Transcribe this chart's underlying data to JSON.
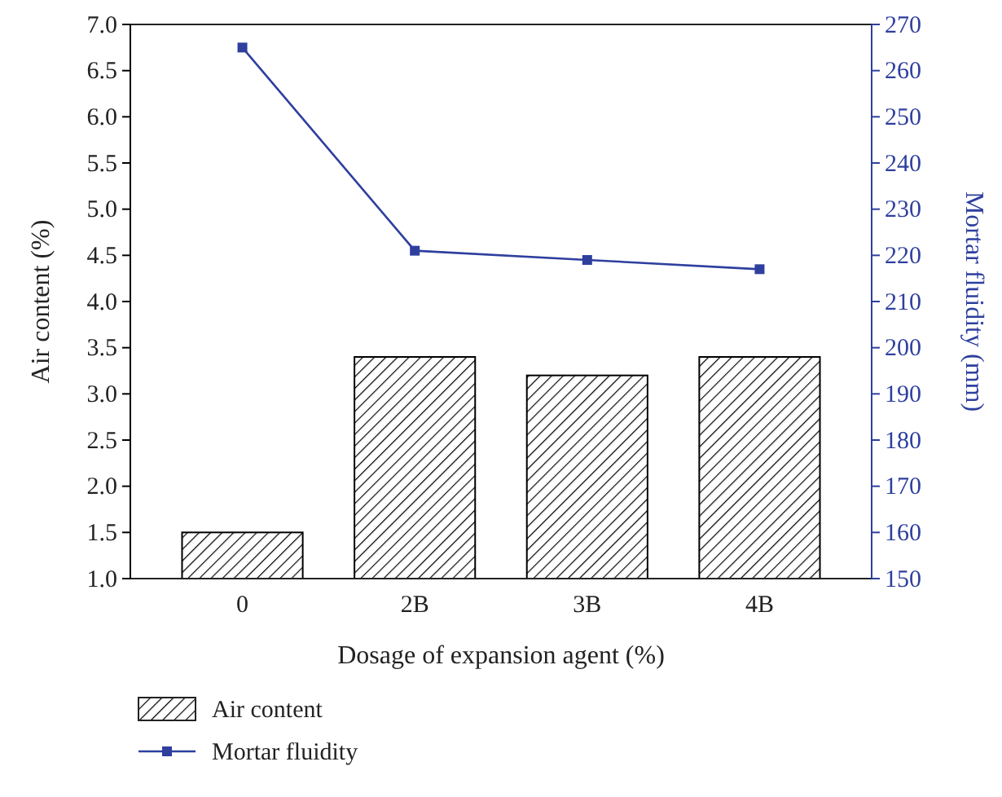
{
  "chart_data": {
    "type": "bar",
    "xlabel": "Dosage of expansion agent (%)",
    "ylabel": "Air content (%)",
    "y2label": "Mortar fluidity (mm)",
    "categories": [
      "0",
      "2B",
      "3B",
      "4B"
    ],
    "series": [
      {
        "name": "Air content",
        "color": "#000000",
        "values": [
          1.5,
          3.4,
          3.2,
          3.4
        ]
      },
      {
        "name": "Mortar fluidity",
        "type": "line",
        "axis": "y2",
        "color": "#2e3f9e",
        "marker": "square",
        "values": [
          265,
          221,
          219,
          217
        ]
      }
    ],
    "ylim": [
      1,
      7
    ],
    "yticks": [
      {
        "value": 1,
        "label": "1.0"
      },
      {
        "value": 1.5,
        "label": "1.5"
      },
      {
        "value": 2,
        "label": "2.0"
      },
      {
        "value": 2.5,
        "label": "2.5"
      },
      {
        "value": 3,
        "label": "3.0"
      },
      {
        "value": 3.5,
        "label": "3.5"
      },
      {
        "value": 4,
        "label": "4.0"
      },
      {
        "value": 4.5,
        "label": "4.5"
      },
      {
        "value": 5,
        "label": "5.0"
      },
      {
        "value": 5.5,
        "label": "5.5"
      },
      {
        "value": 6,
        "label": "6.0"
      },
      {
        "value": 6.5,
        "label": "6.5"
      },
      {
        "value": 7,
        "label": "7.0"
      }
    ],
    "y2lim": [
      150,
      270
    ],
    "y2ticks": [
      150,
      160,
      170,
      180,
      190,
      200,
      210,
      220,
      230,
      240,
      250,
      260,
      270
    ],
    "legend": "bottom left",
    "grid": false
  }
}
